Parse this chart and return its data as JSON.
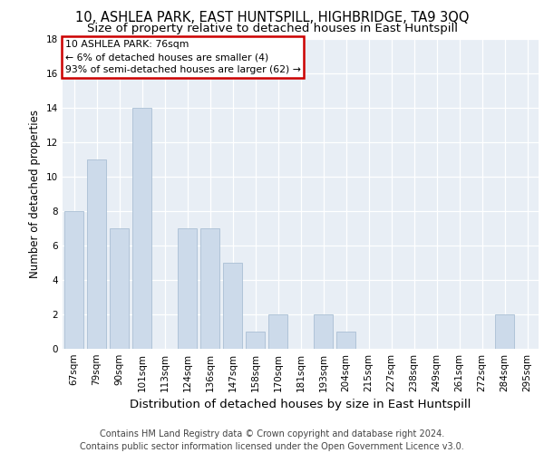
{
  "title1": "10, ASHLEA PARK, EAST HUNTSPILL, HIGHBRIDGE, TA9 3QQ",
  "title2": "Size of property relative to detached houses in East Huntspill",
  "xlabel": "Distribution of detached houses by size in East Huntspill",
  "ylabel": "Number of detached properties",
  "categories": [
    "67sqm",
    "79sqm",
    "90sqm",
    "101sqm",
    "113sqm",
    "124sqm",
    "136sqm",
    "147sqm",
    "158sqm",
    "170sqm",
    "181sqm",
    "193sqm",
    "204sqm",
    "215sqm",
    "227sqm",
    "238sqm",
    "249sqm",
    "261sqm",
    "272sqm",
    "284sqm",
    "295sqm"
  ],
  "values": [
    8,
    11,
    7,
    14,
    0,
    7,
    7,
    5,
    1,
    2,
    0,
    2,
    1,
    0,
    0,
    0,
    0,
    0,
    0,
    2,
    0
  ],
  "bar_color": "#ccdaea",
  "bar_edge_color": "#aabfd4",
  "highlight_box_text": "10 ASHLEA PARK: 76sqm\n← 6% of detached houses are smaller (4)\n93% of semi-detached houses are larger (62) →",
  "highlight_box_color": "#ffffff",
  "highlight_box_edge": "#cc0000",
  "ylim": [
    0,
    18
  ],
  "yticks": [
    0,
    2,
    4,
    6,
    8,
    10,
    12,
    14,
    16,
    18
  ],
  "background_color": "#ffffff",
  "plot_background": "#e8eef5",
  "grid_color": "#ffffff",
  "footer": "Contains HM Land Registry data © Crown copyright and database right 2024.\nContains public sector information licensed under the Open Government Licence v3.0.",
  "title1_fontsize": 10.5,
  "title2_fontsize": 9.5,
  "xlabel_fontsize": 9.5,
  "ylabel_fontsize": 8.5,
  "tick_fontsize": 7.5,
  "footer_fontsize": 7.0,
  "annotation_fontsize": 7.8
}
